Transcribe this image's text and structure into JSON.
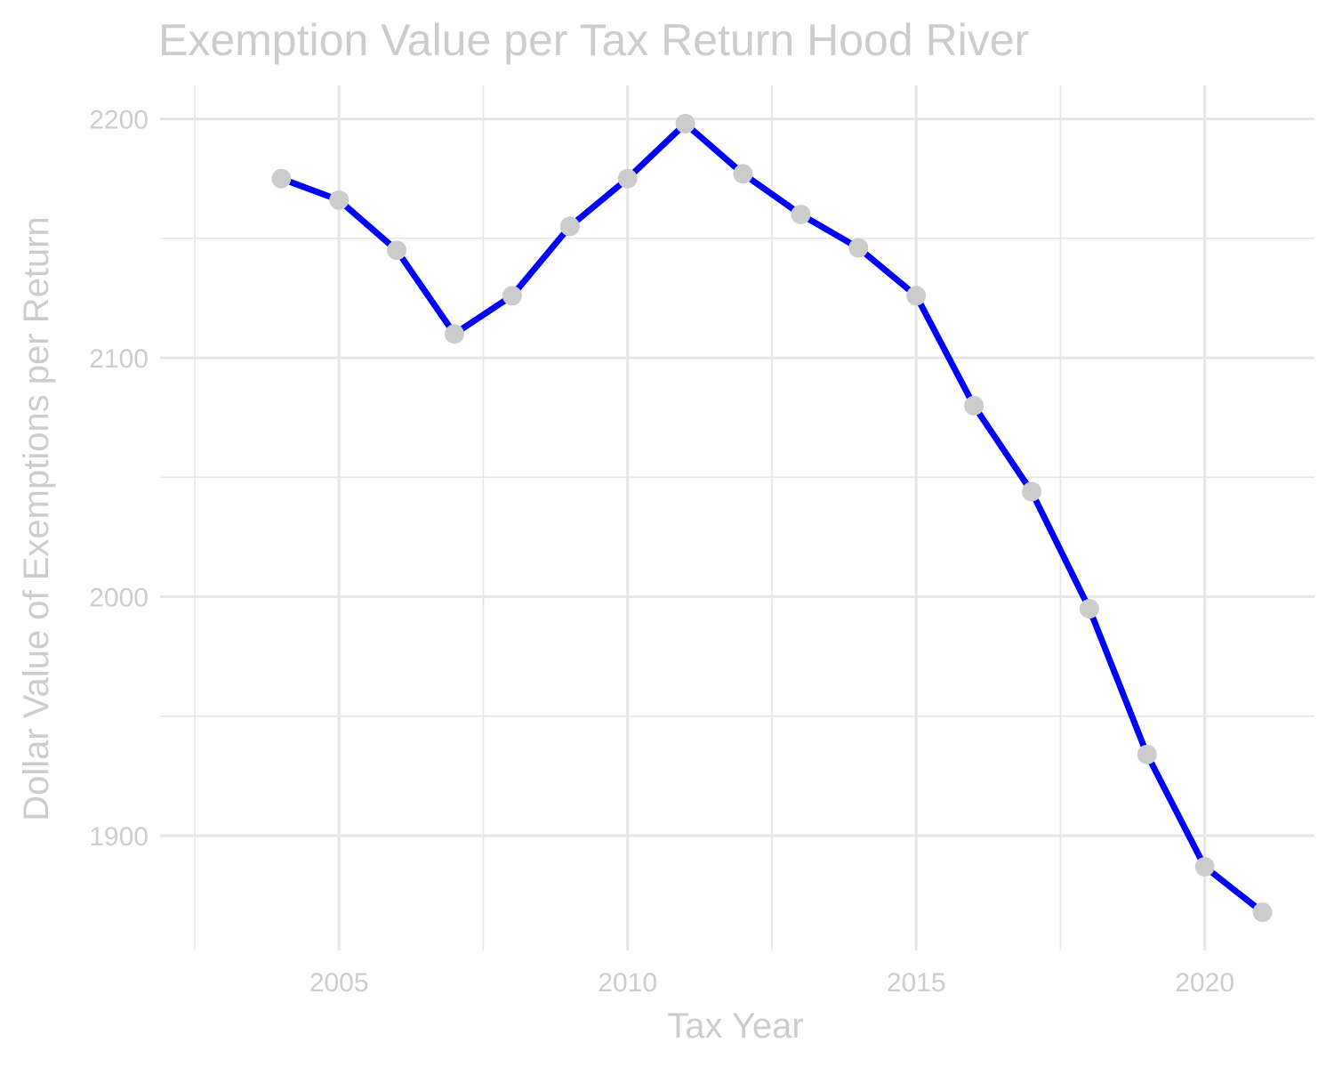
{
  "chart_data": {
    "type": "line",
    "title": "Exemption Value per Tax Return Hood River",
    "xlabel": "Tax Year",
    "ylabel": "Dollar Value of Exemptions per Return",
    "x": [
      2004,
      2005,
      2006,
      2007,
      2008,
      2009,
      2010,
      2011,
      2012,
      2013,
      2014,
      2015,
      2016,
      2017,
      2018,
      2019,
      2020,
      2021
    ],
    "series": [
      {
        "values": [
          2175,
          2166,
          2145,
          2110,
          2126,
          2155,
          2175,
          2198,
          2177,
          2160,
          2146,
          2126,
          2080,
          2044,
          1995,
          1934,
          1887,
          1868
        ]
      }
    ],
    "xlim": [
      2001.9,
      2021.9
    ],
    "ylim": [
      1852,
      2214
    ],
    "x_ticks": [
      2005,
      2010,
      2015,
      2020
    ],
    "x_tick_labels": [
      "2005",
      "2010",
      "2015",
      "2020"
    ],
    "y_ticks": [
      1900,
      2000,
      2100,
      2200
    ],
    "y_tick_labels": [
      "1900",
      "2000",
      "2100",
      "2200"
    ],
    "grid": true,
    "legend": "none",
    "colors": {
      "line": "#0000ff",
      "points": "#cccccc",
      "grid": "#e6e6e6",
      "text": "#cccccc",
      "background": "#ffffff"
    }
  }
}
